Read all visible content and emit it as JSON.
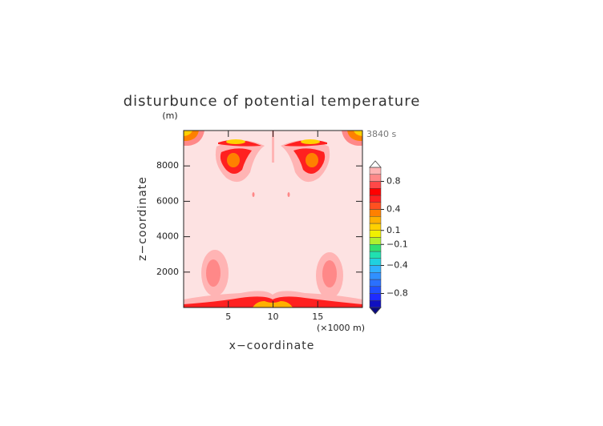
{
  "chart_data": {
    "type": "contour",
    "title": "disturbunce of potential temperature",
    "y_unit": "(m)",
    "time_label": "3840 s",
    "xlabel": "x−coordinate",
    "ylabel": "z−coordinate",
    "x_unit": "(×1000 m)",
    "xlim": [
      0,
      20
    ],
    "xticks": [
      5,
      10,
      15
    ],
    "ylim": [
      0,
      10000
    ],
    "yticks": [
      2000,
      4000,
      6000,
      8000
    ],
    "colorbar": {
      "levels": [
        -1,
        -0.9,
        -0.8,
        -0.7,
        -0.6,
        -0.5,
        -0.4,
        -0.3,
        -0.2,
        -0.1,
        0,
        0.1,
        0.2,
        0.3,
        0.4,
        0.5,
        0.6,
        0.7,
        0.8,
        0.9,
        1
      ],
      "colors": [
        "#1010c0",
        "#1e2cff",
        "#2050ff",
        "#2a70ff",
        "#3090ff",
        "#30b0ff",
        "#20d0e0",
        "#20e0b0",
        "#30e070",
        "#b0f030",
        "#f0f000",
        "#ffd000",
        "#ffb000",
        "#ff8000",
        "#ff5020",
        "#ff2020",
        "#ff0000",
        "#ff4848",
        "#ff8888",
        "#ffb4b4"
      ],
      "ticks": [
        0.8,
        0.4,
        0.1,
        {
          "value": -0.1,
          "label": "−0.1"
        },
        {
          "value": -0.4,
          "label": "−0.4"
        },
        {
          "value": -0.8,
          "label": "−0.8"
        }
      ]
    }
  }
}
